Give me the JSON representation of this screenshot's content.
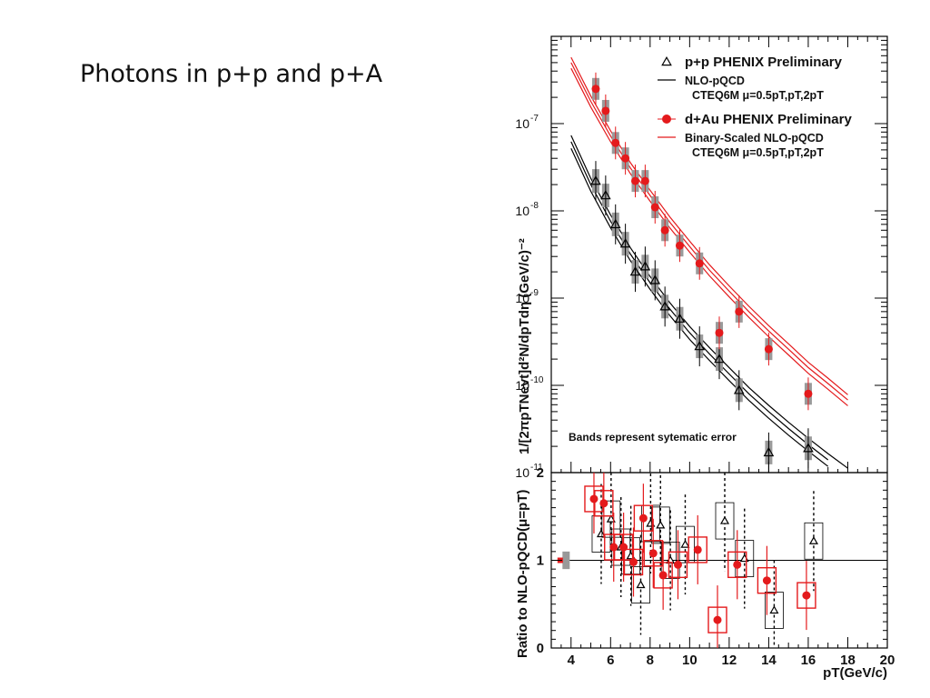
{
  "slide": {
    "title": "Photons in p+p and p+A"
  },
  "chart_data": [
    {
      "type": "scatter",
      "panel": "top",
      "ylabel": "1/[2πpTNevt]d²N/dpTdη (GeV/c)⁻²",
      "yscale": "log",
      "ylim": [
        1e-11,
        1e-06
      ],
      "xlim": [
        3,
        20
      ],
      "y_tick_labels": [
        {
          "text": "10",
          "exp": "-7",
          "v": 1e-07
        },
        {
          "text": "10",
          "exp": "-8",
          "v": 1e-08
        },
        {
          "text": "10",
          "exp": "-9",
          "v": 1e-09
        },
        {
          "text": "10",
          "exp": "-10",
          "v": 1e-10
        },
        {
          "text": "10",
          "exp": "-11",
          "v": 1e-11
        }
      ],
      "annotation": "Bands represent sytematic error",
      "legend": [
        {
          "label": "p+p PHENIX Preliminary",
          "marker": "open-triangle",
          "color": "#000000"
        },
        {
          "label": "NLO-pQCD",
          "marker": "line",
          "color": "#000000"
        },
        {
          "label": "CTEQ6M μ=0.5pT,pT,2pT",
          "marker": "none",
          "color": "#000000"
        },
        {
          "label": "d+Au PHENIX Preliminary",
          "marker": "filled-circle",
          "color": "#e41a1c"
        },
        {
          "label": "Binary-Scaled NLO-pQCD",
          "marker": "line",
          "color": "#e41a1c"
        },
        {
          "label": "CTEQ6M μ=0.5pT,pT,2pT",
          "marker": "none",
          "color": "#000000"
        }
      ],
      "series": [
        {
          "name": "p+p PHENIX Preliminary",
          "color": "#000000",
          "marker": "open-triangle",
          "x": [
            5.25,
            5.75,
            6.25,
            6.75,
            7.25,
            7.75,
            8.25,
            8.75,
            9.5,
            10.5,
            11.5,
            12.5,
            14.0,
            16.0
          ],
          "y": [
            2.2e-08,
            1.5e-08,
            7e-09,
            4.2e-09,
            2e-09,
            2.3e-09,
            1.6e-09,
            8e-10,
            5.8e-10,
            2.8e-10,
            2e-10,
            8.8e-11,
            1.7e-11,
            1.9e-11
          ]
        },
        {
          "name": "d+Au PHENIX Preliminary",
          "color": "#e41a1c",
          "marker": "filled-circle",
          "x": [
            5.25,
            5.75,
            6.25,
            6.75,
            7.25,
            7.75,
            8.25,
            8.75,
            9.5,
            10.5,
            11.5,
            12.5,
            14.0,
            16.0
          ],
          "y": [
            2.5e-07,
            1.4e-07,
            6e-08,
            4e-08,
            2.2e-08,
            2.2e-08,
            1.1e-08,
            6e-09,
            4e-09,
            2.5e-09,
            4e-10,
            7e-10,
            2.6e-10,
            8e-11
          ]
        },
        {
          "name": "NLO-pQCD",
          "color": "#000000",
          "marker": "line",
          "x": [
            4,
            5,
            6,
            7,
            8,
            9,
            10,
            11,
            12,
            13,
            14,
            15,
            16,
            17,
            18
          ],
          "y": [
            6.2e-08,
            2e-08,
            7.6e-09,
            3.2e-09,
            1.5e-09,
            7.5e-10,
            4e-10,
            2.3e-10,
            1.35e-10,
            8e-11,
            5e-11,
            3.2e-11,
            2.1e-11,
            1.4e-11,
            9.5e-12
          ]
        },
        {
          "name": "Binary-Scaled NLO-pQCD",
          "color": "#e41a1c",
          "marker": "line",
          "x": [
            4,
            5,
            6,
            7,
            8,
            9,
            10,
            11,
            12,
            13,
            14,
            15,
            16,
            17,
            18
          ],
          "y": [
            5e-07,
            1.8e-07,
            7.2e-08,
            3.1e-08,
            1.5e-08,
            7.4e-09,
            3.9e-09,
            2.1e-09,
            1.2e-09,
            7e-10,
            4.2e-10,
            2.6e-10,
            1.6e-10,
            1.05e-10,
            6.8e-11
          ]
        }
      ]
    },
    {
      "type": "scatter",
      "panel": "bottom",
      "ylabel": "Ratio to NLO-pQCD(μ=pT)",
      "xlabel": "pT(GeV/c)",
      "xlim": [
        3,
        20
      ],
      "ylim": [
        0,
        2
      ],
      "x_tick_labels": [
        "4",
        "6",
        "8",
        "10",
        "12",
        "14",
        "16",
        "18",
        "20"
      ],
      "y_tick_labels": [
        "0",
        "1",
        "2"
      ],
      "reference_line": 1,
      "series": [
        {
          "name": "p+p",
          "color": "#000000",
          "marker": "open-triangle",
          "x": [
            5.25,
            5.75,
            6.25,
            6.75,
            7.25,
            7.75,
            8.25,
            8.75,
            9.5,
            11.5,
            12.5,
            14.0,
            16.0
          ],
          "y": [
            1.3,
            1.47,
            1.15,
            1.05,
            0.72,
            1.42,
            1.4,
            1.0,
            1.18,
            1.45,
            1.02,
            0.43,
            1.22
          ]
        },
        {
          "name": "d+Au",
          "color": "#e41a1c",
          "marker": "filled-circle",
          "x": [
            5.25,
            5.75,
            6.25,
            6.75,
            7.25,
            7.75,
            8.25,
            8.75,
            9.5,
            10.5,
            11.5,
            12.5,
            14.0,
            16.0
          ],
          "y": [
            1.7,
            1.65,
            1.15,
            1.15,
            0.98,
            1.48,
            1.08,
            0.83,
            0.95,
            1.12,
            0.32,
            0.95,
            0.77,
            0.6
          ]
        }
      ]
    }
  ]
}
